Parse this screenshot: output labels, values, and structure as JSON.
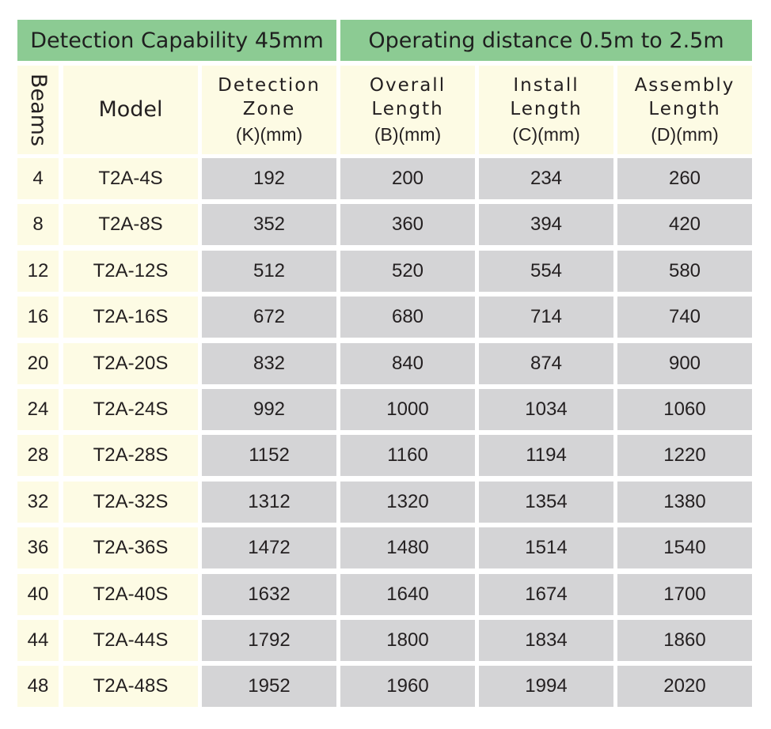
{
  "title_left": "Detection Capability 45mm",
  "title_right": "Operating distance  0.5m to 2.5m",
  "headers": {
    "beams": "Beams",
    "model": "Model",
    "zone": [
      "Detection",
      "Zone",
      "(K)(mm)"
    ],
    "overall": [
      "Overall",
      "Length",
      "(B)(mm)"
    ],
    "install": [
      "Install",
      "Length",
      "(C)(mm)"
    ],
    "assembly": [
      "Assembly",
      "Length",
      "(D)(mm)"
    ]
  },
  "rows": [
    [
      "4",
      "T2A-4S",
      "192",
      "200",
      "234",
      "260"
    ],
    [
      "8",
      "T2A-8S",
      "352",
      "360",
      "394",
      "420"
    ],
    [
      "12",
      "T2A-12S",
      "512",
      "520",
      "554",
      "580"
    ],
    [
      "16",
      "T2A-16S",
      "672",
      "680",
      "714",
      "740"
    ],
    [
      "20",
      "T2A-20S",
      "832",
      "840",
      "874",
      "900"
    ],
    [
      "24",
      "T2A-24S",
      "992",
      "1000",
      "1034",
      "1060"
    ],
    [
      "28",
      "T2A-28S",
      "1152",
      "1160",
      "1194",
      "1220"
    ],
    [
      "32",
      "T2A-32S",
      "1312",
      "1320",
      "1354",
      "1380"
    ],
    [
      "36",
      "T2A-36S",
      "1472",
      "1480",
      "1514",
      "1540"
    ],
    [
      "40",
      "T2A-40S",
      "1632",
      "1640",
      "1674",
      "1700"
    ],
    [
      "44",
      "T2A-44S",
      "1792",
      "1800",
      "1834",
      "1860"
    ],
    [
      "48",
      "T2A-48S",
      "1952",
      "1960",
      "1994",
      "2020"
    ]
  ],
  "colors": {
    "title_band": "#8ccb93",
    "header_band": "#fdfbe4",
    "first_two_columns": "#fdfbe4",
    "value_columns": "#d4d4d6",
    "text": "#231f20"
  }
}
